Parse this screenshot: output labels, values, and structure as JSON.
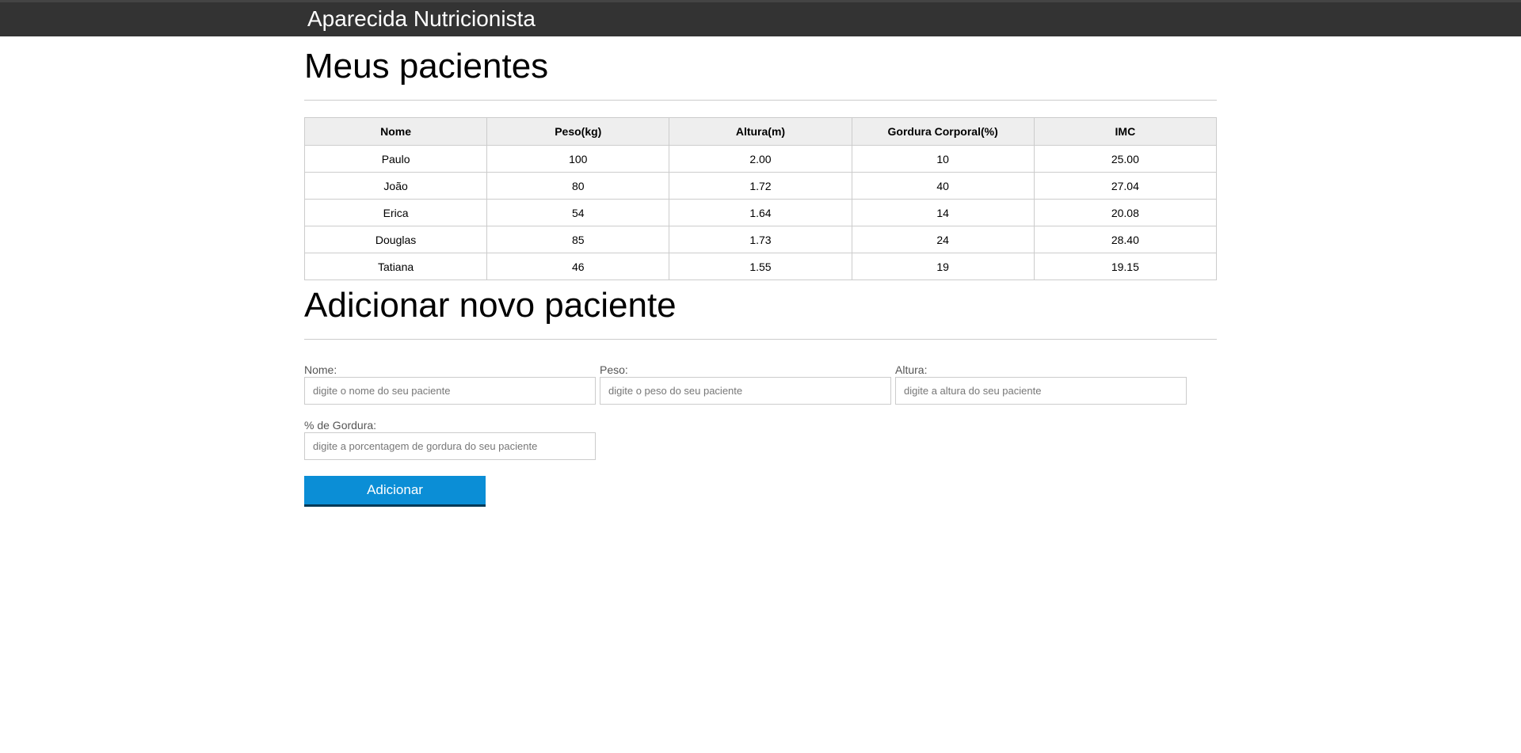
{
  "header": {
    "brand": "Aparecida Nutricionista"
  },
  "patients": {
    "title": "Meus pacientes",
    "columns": [
      "Nome",
      "Peso(kg)",
      "Altura(m)",
      "Gordura Corporal(%)",
      "IMC"
    ],
    "rows": [
      [
        "Paulo",
        "100",
        "2.00",
        "10",
        "25.00"
      ],
      [
        "João",
        "80",
        "1.72",
        "40",
        "27.04"
      ],
      [
        "Erica",
        "54",
        "1.64",
        "14",
        "20.08"
      ],
      [
        "Douglas",
        "85",
        "1.73",
        "24",
        "28.40"
      ],
      [
        "Tatiana",
        "46",
        "1.55",
        "19",
        "19.15"
      ]
    ]
  },
  "form": {
    "title": "Adicionar novo paciente",
    "fields": [
      {
        "label": "Nome:",
        "placeholder": "digite o nome do seu paciente",
        "value": ""
      },
      {
        "label": "Peso:",
        "placeholder": "digite o peso do seu paciente",
        "value": ""
      },
      {
        "label": "Altura:",
        "placeholder": "digite a altura do seu paciente",
        "value": ""
      },
      {
        "label": "% de Gordura:",
        "placeholder": "digite a porcentagem de gordura do seu paciente",
        "value": ""
      }
    ],
    "submit_label": "Adicionar"
  },
  "colors": {
    "header_bg": "#333333",
    "button": "#0b8ed6"
  }
}
